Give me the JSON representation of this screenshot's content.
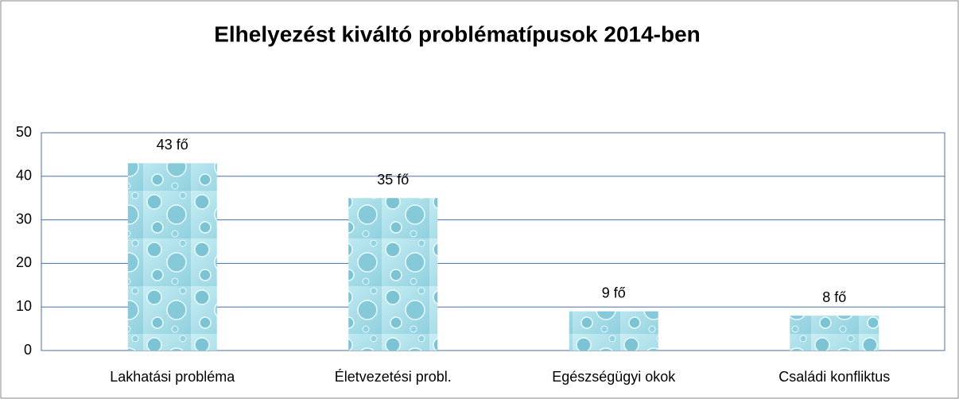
{
  "chart_data": {
    "type": "bar",
    "title": "Elhelyezést kiváltó problématípusok 2014-ben",
    "categories": [
      "Lakhatási probléma",
      "Életvezetési probl.",
      "Egészségügyi okok",
      "Családi konfliktus"
    ],
    "values": [
      43,
      35,
      9,
      8
    ],
    "value_labels": [
      "43 fő",
      "35 fő",
      "9 fő",
      "8 fő"
    ],
    "color": "#a8dde8",
    "ylim": [
      0,
      50
    ],
    "yticks": [
      0,
      10,
      20,
      30,
      40,
      50
    ],
    "grid": true
  }
}
